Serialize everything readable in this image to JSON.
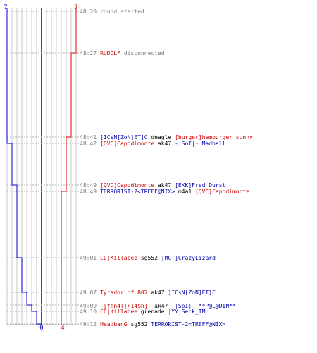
{
  "score": {
    "top_left": "7",
    "top_right": "7",
    "bottom_left": "0",
    "bottom_right": "4"
  },
  "colors": {
    "blue_team": "#0000cc",
    "red_team": "#dd0000",
    "grid": "#c8c8c8",
    "center_line": "#555555",
    "time": "#7a7a7a"
  },
  "events": [
    {
      "time": "48:20",
      "kind": "system",
      "text": "round started"
    },
    {
      "time": "48:27",
      "kind": "player",
      "player": "RUDOLF",
      "player_team": "red",
      "text": "disconnected"
    },
    {
      "time": "48:41",
      "kind": "kill",
      "killer": "]ICsN[ZoN]ET]C",
      "killer_team": "blue",
      "weapon": "deagle",
      "victim": "[burger]hamburger sunny",
      "victim_team": "red"
    },
    {
      "time": "48:42",
      "kind": "kill",
      "killer": "[QVC]Capodimonte",
      "killer_team": "red",
      "weapon": "ak47",
      "victim": "-|SoI|- Madball",
      "victim_team": "blue"
    },
    {
      "time": "48:49",
      "kind": "kill",
      "killer": "[QVC]Capodimonte",
      "killer_team": "red",
      "weapon": "ak47",
      "victim": "[EKK]Fred Durst",
      "victim_team": "blue"
    },
    {
      "time": "48:49",
      "kind": "kill",
      "killer": "TERRORIST-2<TREFF@NIX>",
      "killer_team": "blue",
      "weapon": "m4a1",
      "victim": "[QVC]Capodimonte",
      "victim_team": "red"
    },
    {
      "time": "49:01",
      "kind": "kill",
      "killer": "CC|Killabee",
      "killer_team": "red",
      "weapon": "sg552",
      "victim": "[MCT]CrazyLizard",
      "victim_team": "blue"
    },
    {
      "time": "49:07",
      "kind": "kill",
      "killer": "Tyrador of 807",
      "killer_team": "red",
      "weapon": "ak47",
      "victim": "]ICsN[ZoN]ET]C",
      "victim_team": "blue"
    },
    {
      "time": "49:09",
      "kind": "kill",
      "killer": "-[f!n4l|F14$h]-",
      "killer_team": "red",
      "weapon": "ak47",
      "victim": "-|SoI|- **P@L@DIN**",
      "victim_team": "blue"
    },
    {
      "time": "49:10",
      "kind": "kill",
      "killer": "CC|Killabee",
      "killer_team": "red",
      "weapon": "grenade",
      "victim": "|YY|Seck_TM",
      "victim_team": "blue"
    },
    {
      "time": "49:12",
      "kind": "kill",
      "killer": "HeadbanG",
      "killer_team": "red",
      "weapon": "sg552",
      "victim": "TERRORIST-2<TREFF@NIX>",
      "victim_team": "blue"
    }
  ]
}
